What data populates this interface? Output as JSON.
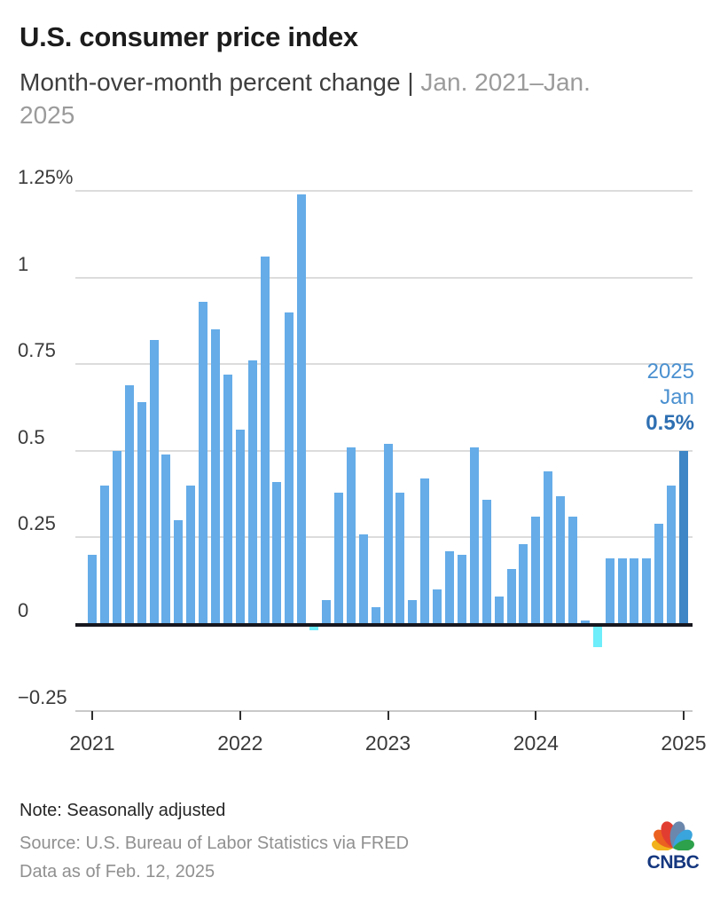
{
  "header": {
    "title": "U.S. consumer price index",
    "subtitle_main": "Month-over-month percent change",
    "subtitle_separator": " | ",
    "subtitle_range_line1": "Jan. 2021–Jan.",
    "subtitle_range_line2": "2025"
  },
  "chart_data": {
    "type": "bar",
    "title": "U.S. consumer price index",
    "subtitle": "Month-over-month percent change | Jan. 2021–Jan. 2025",
    "unit": "percent",
    "grid": true,
    "legend": "none",
    "ylim": [
      -0.25,
      1.25
    ],
    "months": [
      "2021-01",
      "2021-02",
      "2021-03",
      "2021-04",
      "2021-05",
      "2021-06",
      "2021-07",
      "2021-08",
      "2021-09",
      "2021-10",
      "2021-11",
      "2021-12",
      "2022-01",
      "2022-02",
      "2022-03",
      "2022-04",
      "2022-05",
      "2022-06",
      "2022-07",
      "2022-08",
      "2022-09",
      "2022-10",
      "2022-11",
      "2022-12",
      "2023-01",
      "2023-02",
      "2023-03",
      "2023-04",
      "2023-05",
      "2023-06",
      "2023-07",
      "2023-08",
      "2023-09",
      "2023-10",
      "2023-11",
      "2023-12",
      "2024-01",
      "2024-02",
      "2024-03",
      "2024-04",
      "2024-05",
      "2024-06",
      "2024-07",
      "2024-08",
      "2024-09",
      "2024-10",
      "2024-11",
      "2024-12",
      "2025-01"
    ],
    "values": [
      0.2,
      0.4,
      0.5,
      0.69,
      0.64,
      0.82,
      0.49,
      0.3,
      0.4,
      0.93,
      0.85,
      0.72,
      0.56,
      0.76,
      1.06,
      0.41,
      0.9,
      1.24,
      -0.01,
      0.07,
      0.38,
      0.51,
      0.26,
      0.05,
      0.52,
      0.38,
      0.07,
      0.42,
      0.1,
      0.21,
      0.2,
      0.51,
      0.36,
      0.08,
      0.16,
      0.23,
      0.31,
      0.44,
      0.37,
      0.31,
      0.01,
      -0.06,
      0.19,
      0.19,
      0.19,
      0.19,
      0.29,
      0.4,
      0.5
    ],
    "yticks": [
      {
        "label": "1.25%",
        "value": 1.25
      },
      {
        "label": "1",
        "value": 1.0
      },
      {
        "label": "0.75",
        "value": 0.75
      },
      {
        "label": "0.5",
        "value": 0.5
      },
      {
        "label": "0.25",
        "value": 0.25
      },
      {
        "label": "0",
        "value": 0
      },
      {
        "label": "−0.25",
        "value": -0.25
      }
    ],
    "xticks": [
      {
        "label": "2021",
        "month_index": 0
      },
      {
        "label": "2022",
        "month_index": 12
      },
      {
        "label": "2023",
        "month_index": 24
      },
      {
        "label": "2024",
        "month_index": 36
      },
      {
        "label": "2025",
        "month_index": 48
      }
    ],
    "highlight_last_bar": true,
    "callout": {
      "year": "2025",
      "month": "Jan",
      "value": "0.5%",
      "position": "right"
    },
    "colors": {
      "bar": "#65ace8",
      "highlight_bar": "#3e86c6",
      "negative_bar": "#6eedfa",
      "callout_text": "#4a90d0",
      "callout_value": "#2e6fb2"
    }
  },
  "footer": {
    "note": "Note: Seasonally adjusted",
    "source": "Source: U.S. Bureau of Labor Statistics via FRED",
    "data_as_of": "Data as of Feb. 12, 2025",
    "logo_text": "CNBC",
    "peacock_colors": [
      "#f2b21b",
      "#eb6120",
      "#e23d31",
      "#6b87ac",
      "#3aa4dc",
      "#2da14b"
    ]
  }
}
